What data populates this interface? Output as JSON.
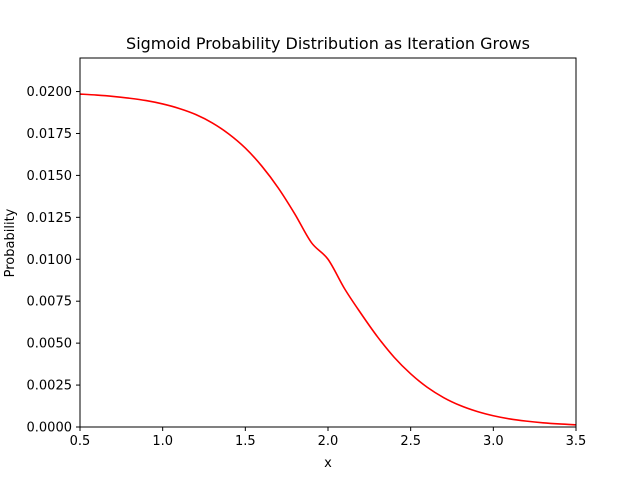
{
  "chart_data": {
    "type": "line",
    "title": "Sigmoid Probability Distribution as Iteration Grows",
    "xlabel": "x",
    "ylabel": "Probability",
    "xlim": [
      0.5,
      3.5
    ],
    "ylim": [
      0.0,
      0.022
    ],
    "grid": false,
    "x_ticks": [
      0.5,
      1.0,
      1.5,
      2.0,
      2.5,
      3.0,
      3.5
    ],
    "x_tick_labels": [
      "0.5",
      "1.0",
      "1.5",
      "2.0",
      "2.5",
      "3.0",
      "3.5"
    ],
    "y_ticks": [
      0.0,
      0.0025,
      0.005,
      0.0075,
      0.01,
      0.0125,
      0.015,
      0.0175,
      0.02
    ],
    "y_tick_labels": [
      "0.0000",
      "0.0025",
      "0.0050",
      "0.0075",
      "0.0100",
      "0.0125",
      "0.0150",
      "0.0175",
      "0.0200"
    ],
    "series": [
      {
        "color": "#ff0000",
        "x": [
          0.5,
          0.6,
          0.7,
          0.8,
          0.9,
          1.0,
          1.1,
          1.2,
          1.3,
          1.4,
          1.5,
          1.6,
          1.7,
          1.8,
          1.9,
          2.0,
          2.1,
          2.2,
          2.3,
          2.4,
          2.5,
          2.6,
          2.7,
          2.8,
          2.9,
          3.0,
          3.1,
          3.2,
          3.3,
          3.4,
          3.5
        ],
        "y": [
          0.01985,
          0.01979,
          0.01971,
          0.0196,
          0.01946,
          0.01926,
          0.01899,
          0.01863,
          0.01813,
          0.01747,
          0.01663,
          0.01555,
          0.01424,
          0.01269,
          0.01099,
          0.01,
          0.00825,
          0.00676,
          0.00537,
          0.00416,
          0.00317,
          0.00237,
          0.00175,
          0.00128,
          0.00093,
          0.00067,
          0.00048,
          0.00035,
          0.00025,
          0.00018,
          0.00013
        ]
      }
    ]
  }
}
